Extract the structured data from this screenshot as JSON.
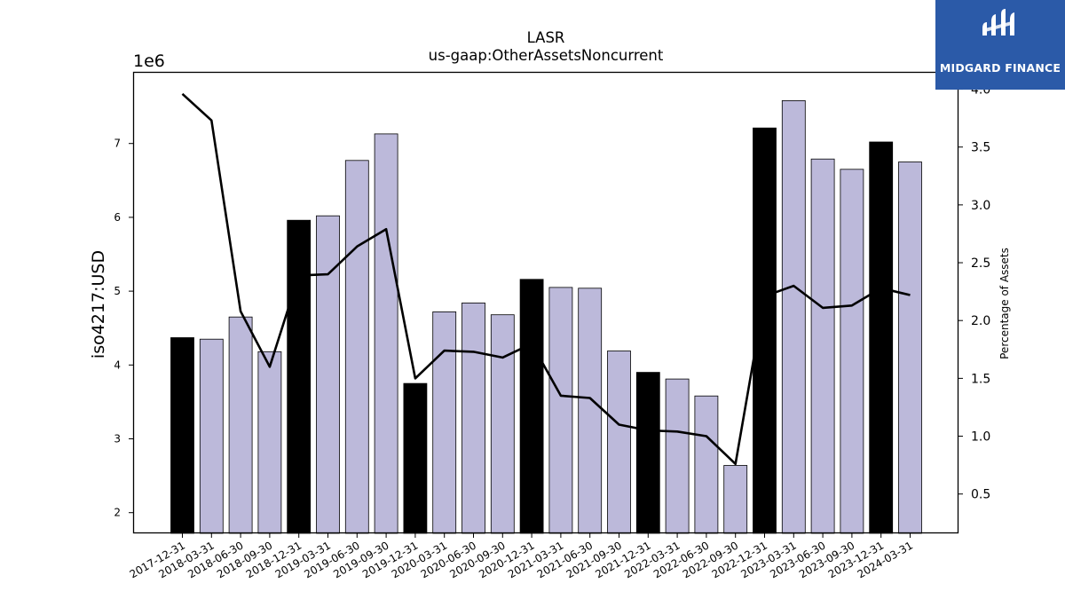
{
  "chart_data": {
    "type": "bar",
    "title": "LASR",
    "subtitle": "us-gaap:OtherAssetsNoncurrent",
    "ylabel": "iso4217:USD",
    "y_offset_label": "1e6",
    "y2label": "Percentage of Assets",
    "ylim": [
      1.72,
      7.97
    ],
    "y2lim": [
      0.16,
      4.15
    ],
    "yticks": [
      2,
      3,
      4,
      5,
      6,
      7
    ],
    "y2ticks": [
      "0.5",
      "1.0",
      "1.5",
      "2.0",
      "2.5",
      "3.0",
      "3.5",
      "4.0"
    ],
    "grid": false,
    "categories": [
      "2017-12-31",
      "2018-03-31",
      "2018-06-30",
      "2018-09-30",
      "2018-12-31",
      "2019-03-31",
      "2019-06-30",
      "2019-09-30",
      "2019-12-31",
      "2020-03-31",
      "2020-06-30",
      "2020-09-30",
      "2020-12-31",
      "2021-03-31",
      "2021-06-30",
      "2021-09-30",
      "2021-12-31",
      "2022-03-31",
      "2022-06-30",
      "2022-09-30",
      "2022-12-31",
      "2023-03-31",
      "2023-06-30",
      "2023-09-30",
      "2023-12-31",
      "2024-03-31"
    ],
    "series": [
      {
        "type": "bar",
        "values": [
          4.37,
          4.35,
          4.65,
          4.18,
          5.96,
          6.02,
          6.77,
          7.13,
          3.75,
          4.72,
          4.84,
          4.68,
          5.16,
          5.05,
          5.04,
          4.19,
          3.9,
          3.81,
          3.58,
          2.64,
          7.21,
          7.58,
          6.79,
          6.65,
          7.02,
          6.75
        ],
        "year_end_color": "#000000",
        "quarter_color": "#bcb9da",
        "year_end_flags": [
          true,
          false,
          false,
          false,
          true,
          false,
          false,
          false,
          true,
          false,
          false,
          false,
          true,
          false,
          false,
          false,
          true,
          false,
          false,
          false,
          true,
          false,
          false,
          false,
          true,
          false
        ]
      },
      {
        "type": "line",
        "axis": "right",
        "color": "#000000",
        "values": [
          3.96,
          3.73,
          2.08,
          1.6,
          2.39,
          2.4,
          2.64,
          2.79,
          1.5,
          1.74,
          1.73,
          1.68,
          1.8,
          1.35,
          1.33,
          1.1,
          1.05,
          1.04,
          1.0,
          0.76,
          2.21,
          2.3,
          2.11,
          2.13,
          2.28,
          2.22
        ]
      }
    ]
  },
  "logo": {
    "text": "MIDGARD FINANCE",
    "color": "#2b5aa8"
  }
}
